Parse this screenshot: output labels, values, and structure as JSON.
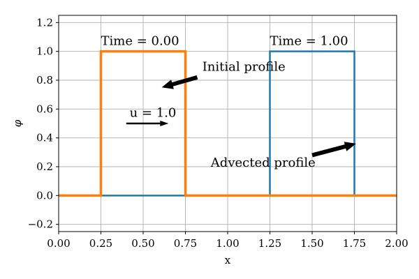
{
  "chart_data": {
    "type": "line",
    "xlabel": "x",
    "ylabel": "φ",
    "xlim": [
      0,
      2
    ],
    "ylim": [
      -0.25,
      1.25
    ],
    "grid": true,
    "x_ticks": [
      0.0,
      0.25,
      0.5,
      0.75,
      1.0,
      1.25,
      1.5,
      1.75,
      2.0
    ],
    "x_tick_labels": [
      "0.00",
      "0.25",
      "0.50",
      "0.75",
      "1.00",
      "1.25",
      "1.50",
      "1.75",
      "2.00"
    ],
    "y_ticks": [
      -0.2,
      0.0,
      0.2,
      0.4,
      0.6,
      0.8,
      1.0,
      1.2
    ],
    "y_tick_labels": [
      "−0.2",
      "0.0",
      "0.2",
      "0.4",
      "0.6",
      "0.8",
      "1.0",
      "1.2"
    ],
    "series": [
      {
        "color": "#1f77b4",
        "stroke_width": 2.5,
        "x": [
          0.0,
          1.25,
          1.25,
          1.75,
          1.75,
          2.0
        ],
        "y": [
          0.0,
          0.0,
          1.0,
          1.0,
          0.0,
          0.0
        ]
      },
      {
        "color": "#ff7f0e",
        "stroke_width": 3.5,
        "x": [
          0.0,
          0.25,
          0.25,
          0.75,
          0.75,
          2.0
        ],
        "y": [
          0.0,
          0.0,
          1.0,
          1.0,
          0.0,
          0.0
        ]
      }
    ],
    "annotations": [
      {
        "id": "time-initial",
        "text": "Time = 0.00",
        "x": 0.25,
        "y": 1.045,
        "anchor": "start"
      },
      {
        "id": "time-advected",
        "text": "Time = 1.00",
        "x": 1.25,
        "y": 1.045,
        "anchor": "start"
      },
      {
        "id": "initial-profile",
        "text": "Initial profile",
        "x": 0.85,
        "y": 0.865,
        "anchor": "start",
        "arrow_from": [
          0.82,
          0.82
        ],
        "arrow_to": [
          0.61,
          0.75
        ]
      },
      {
        "id": "velocity",
        "text": "u = 1.0",
        "x": 0.42,
        "y": 0.545,
        "anchor": "start",
        "arrow_from": [
          0.4,
          0.5
        ],
        "arrow_to": [
          0.65,
          0.5
        ]
      },
      {
        "id": "advected-profile",
        "text": "Advected profile",
        "x": 0.9,
        "y": 0.2,
        "anchor": "start",
        "arrow_from": [
          1.5,
          0.28
        ],
        "arrow_to": [
          1.76,
          0.36
        ]
      }
    ]
  }
}
